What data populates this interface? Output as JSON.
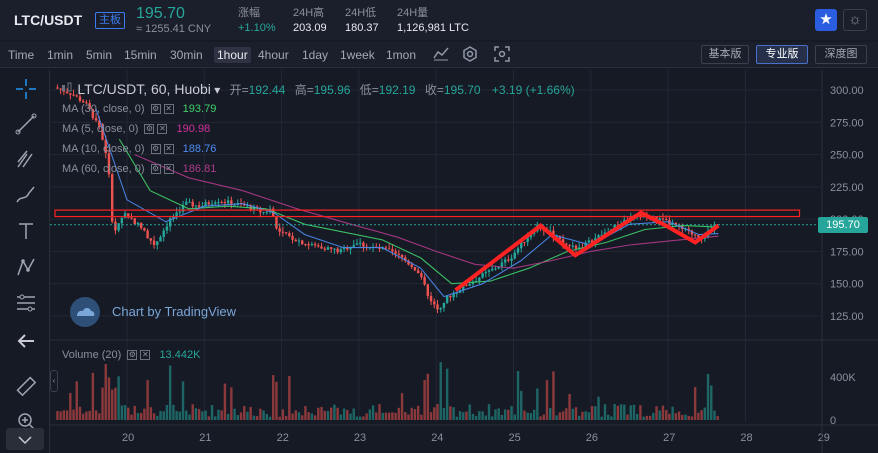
{
  "header": {
    "pair": "LTC/USDT",
    "main_badge": "主板",
    "price": "195.70",
    "cny": "≈ 1255.41 CNY",
    "stats": [
      {
        "label": "涨幅",
        "value": "+1.10%",
        "green": true
      },
      {
        "label": "24H高",
        "value": "203.09",
        "green": false
      },
      {
        "label": "24H低",
        "value": "180.37",
        "green": false
      },
      {
        "label": "24H量",
        "value": "1,126,981 LTC",
        "green": false
      }
    ],
    "favorite_icon": "star-icon",
    "theme_icon": "sun-icon"
  },
  "toolbar": {
    "timeframes": [
      "Time",
      "1min",
      "5min",
      "15min",
      "30min",
      "1hour",
      "4hour",
      "1day",
      "1week",
      "1mon"
    ],
    "active_timeframe": "1hour",
    "tool_icons": [
      "indicators-icon",
      "settings-icon",
      "screenshot-icon"
    ],
    "modes": [
      "基本版",
      "专业版",
      "深度图"
    ],
    "active_mode": "专业版"
  },
  "left_tools": [
    "crosshair-icon",
    "trend-line-icon",
    "pitchfork-icon",
    "brush-icon",
    "text-icon",
    "pattern-icon",
    "fib-retracement-icon",
    "back-arrow-icon",
    "ruler-icon",
    "zoom-in-icon",
    "collapse-icon"
  ],
  "legend": {
    "symbol": "LTC/USDT, 60, Huobi",
    "open_label": "开=",
    "open": "192.44",
    "high_label": "高=",
    "high": "195.96",
    "low_label": "低=",
    "low": "192.19",
    "close_label": "收=",
    "close": "195.70",
    "change": "+3.19 (+1.66%)",
    "ma": [
      {
        "label": "MA (30, close, 0)",
        "value": "193.79",
        "color": "#3fd06a"
      },
      {
        "label": "MA (5, close, 0)",
        "value": "190.98",
        "color": "#d0309c"
      },
      {
        "label": "MA (10, close, 0)",
        "value": "188.76",
        "color": "#4d8cf2"
      },
      {
        "label": "MA (60, close, 0)",
        "value": "186.81",
        "color": "#b03a8a"
      }
    ],
    "volume_label": "Volume (20)",
    "volume_value": "13.442K"
  },
  "watermark": "Chart by TradingView",
  "last_price_tag": "195.70",
  "colors": {
    "up": "#26a69a",
    "down": "#ef5350",
    "annotation": "#ff2222",
    "background": "#161a25"
  },
  "chart_data": {
    "type": "candlestick",
    "price_axis_ticks": [
      "300.00",
      "275.00",
      "250.00",
      "225.00",
      "200.00",
      "175.00",
      "150.00",
      "125.00"
    ],
    "volume_axis_ticks": [
      "400K",
      "0"
    ],
    "x_ticks": [
      "20",
      "21",
      "22",
      "23",
      "24",
      "25",
      "26",
      "27",
      "28",
      "29"
    ],
    "ylim": [
      110,
      308
    ],
    "price_path": [
      [
        19.1,
        302
      ],
      [
        19.3,
        298
      ],
      [
        19.5,
        290
      ],
      [
        19.7,
        270
      ],
      [
        19.8,
        240
      ],
      [
        19.85,
        200
      ],
      [
        19.9,
        190
      ],
      [
        20.0,
        205
      ],
      [
        20.2,
        195
      ],
      [
        20.4,
        180
      ],
      [
        20.6,
        200
      ],
      [
        20.8,
        212
      ],
      [
        21.0,
        210
      ],
      [
        21.2,
        215
      ],
      [
        21.4,
        212
      ],
      [
        21.6,
        210
      ],
      [
        21.8,
        205
      ],
      [
        21.9,
        208
      ],
      [
        22.0,
        190
      ],
      [
        22.2,
        185
      ],
      [
        22.4,
        180
      ],
      [
        22.6,
        178
      ],
      [
        22.8,
        175
      ],
      [
        23.0,
        182
      ],
      [
        23.2,
        178
      ],
      [
        23.4,
        176
      ],
      [
        23.6,
        170
      ],
      [
        23.8,
        160
      ],
      [
        23.95,
        140
      ],
      [
        24.05,
        130
      ],
      [
        24.2,
        140
      ],
      [
        24.4,
        148
      ],
      [
        24.6,
        155
      ],
      [
        24.8,
        162
      ],
      [
        25.0,
        170
      ],
      [
        25.2,
        185
      ],
      [
        25.35,
        195
      ],
      [
        25.5,
        190
      ],
      [
        25.7,
        180
      ],
      [
        25.9,
        178
      ],
      [
        26.1,
        185
      ],
      [
        26.3,
        192
      ],
      [
        26.5,
        200
      ],
      [
        26.7,
        203
      ],
      [
        26.9,
        200
      ],
      [
        27.1,
        196
      ],
      [
        27.3,
        190
      ],
      [
        27.5,
        186
      ],
      [
        27.65,
        195.7
      ]
    ],
    "moving_averages": [
      {
        "name": "MA (30, close, 0)",
        "color": "#3fd06a",
        "points": [
          [
            19.9,
            262
          ],
          [
            20.3,
            222
          ],
          [
            20.8,
            208
          ],
          [
            21.3,
            210
          ],
          [
            21.8,
            208
          ],
          [
            22.3,
            196
          ],
          [
            22.8,
            190
          ],
          [
            23.3,
            184
          ],
          [
            23.8,
            170
          ],
          [
            24.2,
            150
          ],
          [
            24.7,
            152
          ],
          [
            25.2,
            162
          ],
          [
            25.7,
            175
          ],
          [
            26.2,
            182
          ],
          [
            26.7,
            192
          ],
          [
            27.2,
            195
          ],
          [
            27.65,
            193.8
          ]
        ]
      },
      {
        "name": "MA (10, close, 0)",
        "color": "#4d8cf2",
        "points": [
          [
            19.6,
            285
          ],
          [
            20.0,
            215
          ],
          [
            20.5,
            198
          ],
          [
            21.0,
            210
          ],
          [
            21.5,
            212
          ],
          [
            21.9,
            205
          ],
          [
            22.3,
            188
          ],
          [
            22.8,
            178
          ],
          [
            23.3,
            178
          ],
          [
            23.8,
            162
          ],
          [
            24.1,
            140
          ],
          [
            24.6,
            150
          ],
          [
            25.1,
            168
          ],
          [
            25.5,
            188
          ],
          [
            26.0,
            180
          ],
          [
            26.5,
            196
          ],
          [
            27.0,
            198
          ],
          [
            27.4,
            188
          ],
          [
            27.65,
            188.8
          ]
        ]
      },
      {
        "name": "MA (60, close, 0)",
        "color": "#b03a8a",
        "points": [
          [
            20.1,
            250
          ],
          [
            20.8,
            232
          ],
          [
            21.5,
            222
          ],
          [
            22.2,
            208
          ],
          [
            22.9,
            196
          ],
          [
            23.5,
            186
          ],
          [
            24.0,
            175
          ],
          [
            24.5,
            165
          ],
          [
            25.0,
            162
          ],
          [
            25.5,
            168
          ],
          [
            26.0,
            175
          ],
          [
            26.5,
            180
          ],
          [
            27.0,
            183
          ],
          [
            27.65,
            186.8
          ]
        ]
      }
    ],
    "volume": {
      "max": 500000
    }
  },
  "annotations": {
    "resistance_box": {
      "x_from": 19.0,
      "x_to": 28.7,
      "y_from": 202,
      "y_to": 207
    },
    "zigzag": [
      [
        24.25,
        145
      ],
      [
        25.35,
        195
      ],
      [
        25.8,
        172
      ],
      [
        26.65,
        205
      ],
      [
        27.0,
        194
      ],
      [
        27.35,
        182
      ],
      [
        27.65,
        195
      ]
    ]
  }
}
